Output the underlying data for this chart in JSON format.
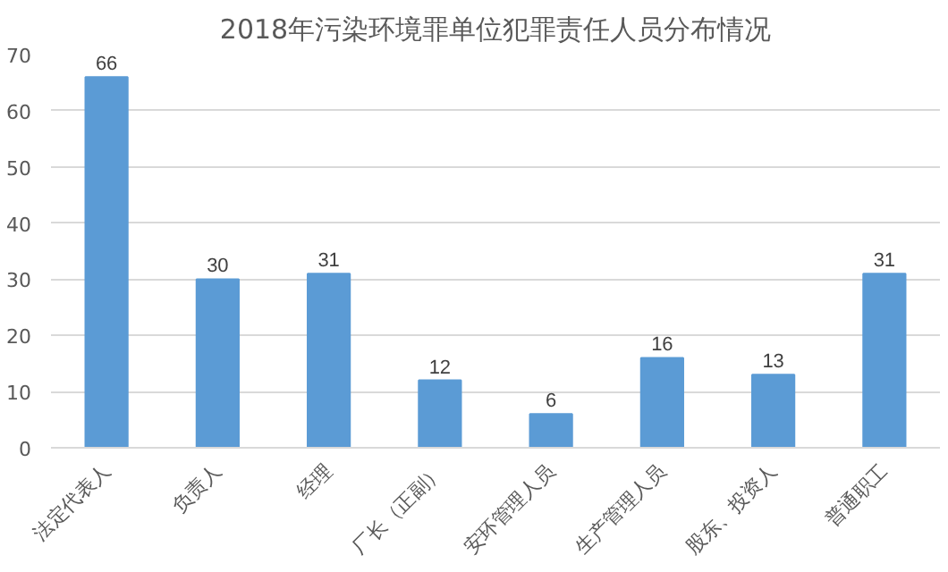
{
  "chart_data": {
    "type": "bar",
    "title": "2018年污染环境罪单位犯罪责任人员分布情况",
    "categories": [
      "法定代表人",
      "负责人",
      "经理",
      "厂长（正副）",
      "安环管理人员",
      "生产管理人员",
      "股东、投资人",
      "普通职工"
    ],
    "values": [
      66,
      30,
      31,
      12,
      6,
      16,
      13,
      31
    ],
    "color": "#5b9bd5",
    "ylim": [
      0,
      70
    ],
    "yticks": [
      0,
      10,
      20,
      30,
      40,
      50,
      60,
      70
    ],
    "grid": "y",
    "data_labels": true
  }
}
